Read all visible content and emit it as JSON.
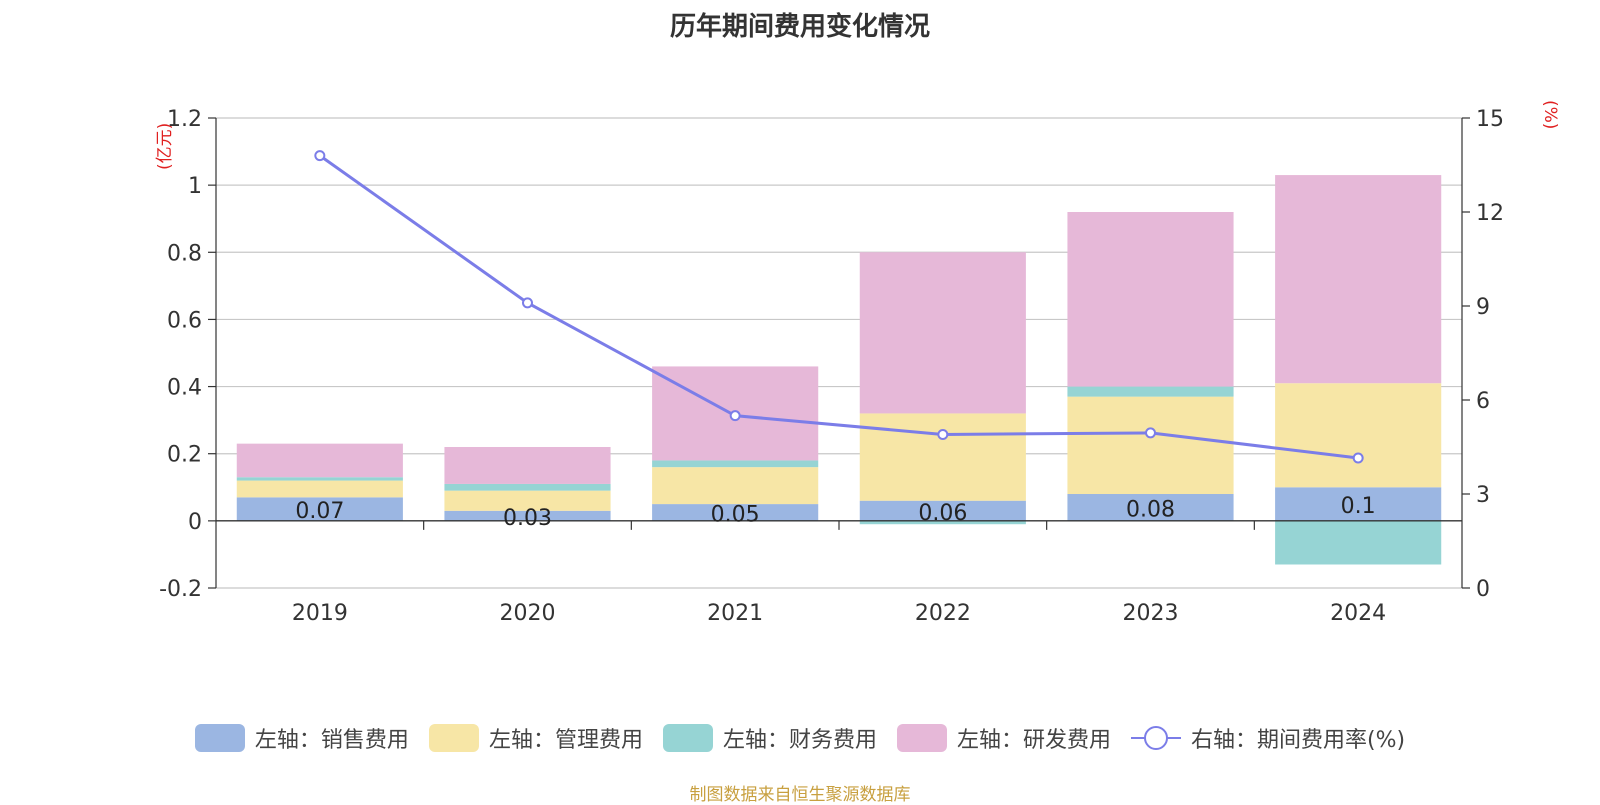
{
  "title": "历年期间费用变化情况",
  "left_unit": "(亿元)",
  "right_unit": "(%)",
  "source": "制图数据来自恒生聚源数据库",
  "colors": {
    "sales": "#9bb6e2",
    "admin": "#f7e6a6",
    "finance": "#96d4d4",
    "rd": "#e6b8d8",
    "line": "#7b7de8"
  },
  "chart_data": {
    "type": "bar",
    "stacked": true,
    "categories": [
      "2019",
      "2020",
      "2021",
      "2022",
      "2023",
      "2024"
    ],
    "series": [
      {
        "name": "左轴：销售费用",
        "axis": "left",
        "color_key": "sales",
        "values": [
          0.07,
          0.03,
          0.05,
          0.06,
          0.08,
          0.1
        ],
        "labels": [
          "0.07",
          "0.03",
          "0.05",
          "0.06",
          "0.08",
          "0.1"
        ]
      },
      {
        "name": "左轴：管理费用",
        "axis": "left",
        "color_key": "admin",
        "values": [
          0.05,
          0.06,
          0.11,
          0.26,
          0.29,
          0.31
        ]
      },
      {
        "name": "左轴：财务费用",
        "axis": "left",
        "color_key": "finance",
        "values": [
          0.01,
          0.02,
          0.02,
          -0.01,
          0.03,
          -0.13
        ]
      },
      {
        "name": "左轴：研发费用",
        "axis": "left",
        "color_key": "rd",
        "values": [
          0.1,
          0.11,
          0.28,
          0.48,
          0.52,
          0.62
        ]
      },
      {
        "name": "右轴：期间费用率(%)",
        "axis": "right",
        "type": "line",
        "color_key": "line",
        "values": [
          13.8,
          9.1,
          5.5,
          4.9,
          4.95,
          4.15
        ]
      }
    ],
    "left_axis": {
      "ylim": [
        -0.2,
        1.2
      ],
      "ticks": [
        "-0.2",
        "0",
        "0.2",
        "0.4",
        "0.6",
        "0.8",
        "1",
        "1.2"
      ]
    },
    "right_axis": {
      "ylim": [
        0,
        15
      ],
      "ticks": [
        "0",
        "3",
        "6",
        "9",
        "12",
        "15"
      ]
    },
    "grid": true,
    "legend": "bottom"
  }
}
